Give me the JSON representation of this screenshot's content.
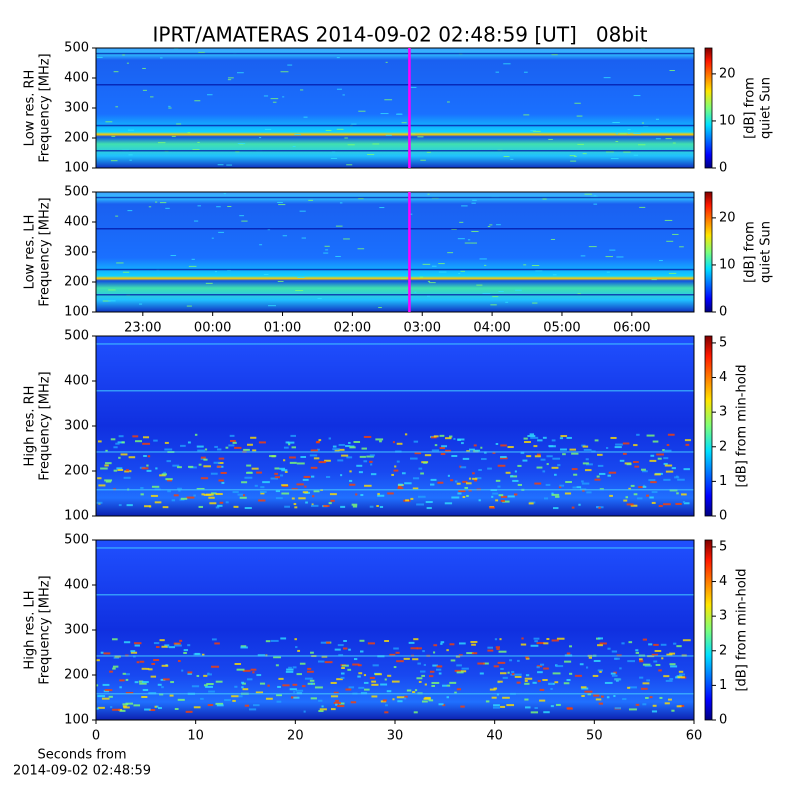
{
  "title": "IPRT/AMATERAS 2014-09-02 02:48:59 [UT]   08bit",
  "chart_data": [
    {
      "type": "spectrogram",
      "ylabel": [
        "Low res. RH",
        "Frequency [MHz]"
      ],
      "ylim": [
        100,
        500
      ],
      "yticks": [
        100,
        200,
        300,
        400,
        500
      ],
      "xlim": [
        -1.67,
        6.89
      ],
      "marker": {
        "x": 2.8164,
        "color": "#ff00ff"
      },
      "colorbar": {
        "label": [
          "[dB] from",
          "quiet Sun"
        ],
        "lim": [
          0,
          25.5
        ],
        "ticks": [
          0,
          10,
          20
        ]
      }
    },
    {
      "type": "spectrogram",
      "ylabel": [
        "Low res. LH",
        "Frequency [MHz]"
      ],
      "ylim": [
        100,
        500
      ],
      "yticks": [
        100,
        200,
        300,
        400,
        500
      ],
      "xlim": [
        -1.67,
        6.89
      ],
      "xticks": [
        {
          "value": -1,
          "label": "23:00"
        },
        {
          "value": 0,
          "label": "00:00"
        },
        {
          "value": 1,
          "label": "01:00"
        },
        {
          "value": 2,
          "label": "02:00"
        },
        {
          "value": 3,
          "label": "03:00"
        },
        {
          "value": 4,
          "label": "04:00"
        },
        {
          "value": 5,
          "label": "05:00"
        },
        {
          "value": 6,
          "label": "06:00"
        }
      ],
      "marker": {
        "x": 2.8164,
        "color": "#ff00ff"
      },
      "colorbar": {
        "label": [
          "[dB] from",
          "quiet Sun"
        ],
        "lim": [
          0,
          25.5
        ],
        "ticks": [
          0,
          10,
          20
        ]
      }
    },
    {
      "type": "spectrogram",
      "ylabel": [
        "High res. RH",
        "Frequency [MHz]"
      ],
      "ylim": [
        100,
        500
      ],
      "yticks": [
        100,
        200,
        300,
        400,
        500
      ],
      "xlim": [
        0,
        60
      ],
      "colorbar": {
        "label": [
          "[dB] from min-hold"
        ],
        "lim": [
          0,
          5.2
        ],
        "ticks": [
          0,
          1,
          2,
          3,
          4,
          5
        ]
      }
    },
    {
      "type": "spectrogram",
      "ylabel": [
        "High res. LH",
        "Frequency [MHz]"
      ],
      "ylim": [
        100,
        500
      ],
      "yticks": [
        100,
        200,
        300,
        400,
        500
      ],
      "xlim": [
        0,
        60
      ],
      "xticks": [
        0,
        10,
        20,
        30,
        40,
        50,
        60
      ],
      "xlabel": [
        "Seconds from",
        "2014-09-02 02:48:59"
      ],
      "colorbar": {
        "label": [
          "[dB] from min-hold"
        ],
        "lim": [
          0,
          5.2
        ],
        "ticks": [
          0,
          1,
          2,
          3,
          4,
          5
        ]
      }
    }
  ]
}
